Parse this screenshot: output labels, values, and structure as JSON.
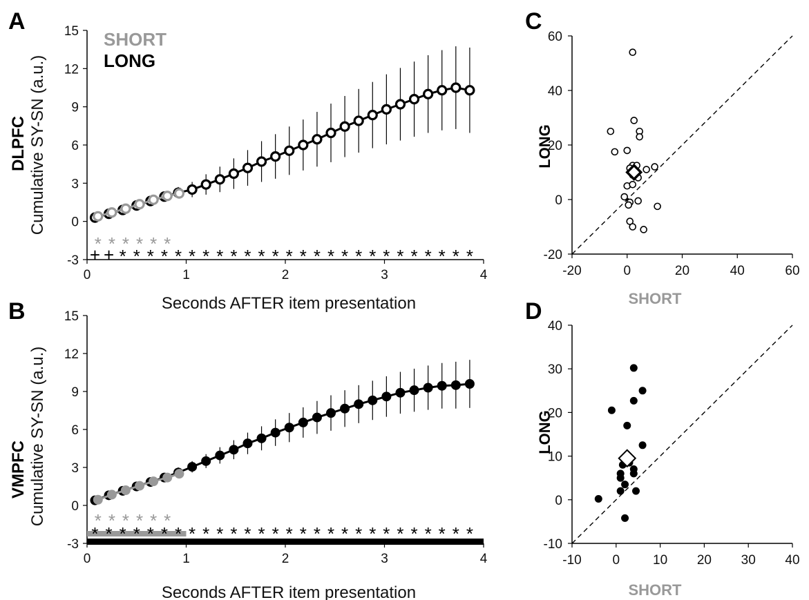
{
  "colors": {
    "short": "#999999",
    "long": "#000000"
  },
  "chart_data": [
    {
      "panel": "A",
      "type": "line",
      "region": "DLPFC",
      "marker": "open-circle",
      "xlabel": "Seconds AFTER item presentation",
      "ylabel": "Cumulative SY-SN (a.u.)",
      "xlim": [
        0,
        4
      ],
      "ylim": [
        -3,
        15
      ],
      "xticks": [
        "0",
        "1",
        "2",
        "3",
        "4"
      ],
      "yticks": [
        "-3",
        "0",
        "3",
        "6",
        "9",
        "12",
        "15"
      ],
      "legend": [
        "SHORT",
        "LONG"
      ],
      "series": [
        {
          "name": "LONG",
          "x": [
            0.08,
            0.22,
            0.36,
            0.5,
            0.64,
            0.78,
            0.92,
            1.06,
            1.2,
            1.34,
            1.48,
            1.62,
            1.76,
            1.9,
            2.04,
            2.18,
            2.32,
            2.46,
            2.6,
            2.74,
            2.88,
            3.02,
            3.16,
            3.3,
            3.44,
            3.58,
            3.72,
            3.86
          ],
          "y": [
            0.3,
            0.6,
            0.9,
            1.25,
            1.6,
            1.95,
            2.25,
            2.5,
            2.9,
            3.3,
            3.75,
            4.2,
            4.7,
            5.1,
            5.55,
            6.0,
            6.45,
            6.95,
            7.45,
            7.9,
            8.35,
            8.8,
            9.2,
            9.6,
            10.0,
            10.3,
            10.5,
            10.3
          ],
          "err": [
            0.15,
            0.2,
            0.25,
            0.3,
            0.35,
            0.4,
            0.45,
            0.6,
            0.8,
            1.0,
            1.2,
            1.4,
            1.6,
            1.75,
            1.9,
            2.0,
            2.15,
            2.3,
            2.4,
            2.5,
            2.6,
            2.75,
            2.85,
            2.95,
            3.05,
            3.15,
            3.25,
            3.35
          ]
        },
        {
          "name": "SHORT",
          "x": [
            0.11,
            0.25,
            0.39,
            0.53,
            0.67,
            0.81,
            0.93
          ],
          "y": [
            0.4,
            0.7,
            1.0,
            1.35,
            1.7,
            2.0,
            2.2
          ],
          "err": [
            0,
            0,
            0,
            0,
            0,
            0,
            0
          ]
        }
      ],
      "significance": [
        {
          "series": "SHORT",
          "marks": [
            "*",
            "*",
            "*",
            "*",
            "*",
            "*"
          ],
          "x": [
            0.11,
            0.25,
            0.39,
            0.53,
            0.67,
            0.81
          ]
        },
        {
          "series": "LONG",
          "marks": [
            "+",
            "+",
            "*",
            "*",
            "*",
            "*",
            "*",
            "*",
            "*",
            "*",
            "*",
            "*",
            "*",
            "*",
            "*",
            "*",
            "*",
            "*",
            "*",
            "*",
            "*",
            "*",
            "*",
            "*",
            "*",
            "*",
            "*",
            "*"
          ],
          "x": [
            0.08,
            0.22,
            0.36,
            0.5,
            0.64,
            0.78,
            0.92,
            1.06,
            1.2,
            1.34,
            1.48,
            1.62,
            1.76,
            1.9,
            2.04,
            2.18,
            2.32,
            2.46,
            2.6,
            2.74,
            2.88,
            3.02,
            3.16,
            3.3,
            3.44,
            3.58,
            3.72,
            3.86
          ]
        }
      ]
    },
    {
      "panel": "B",
      "type": "line",
      "region": "VMPFC",
      "marker": "filled-circle",
      "xlabel": "Seconds AFTER item presentation",
      "ylabel": "Cumulative SY-SN (a.u.)",
      "xlim": [
        0,
        4
      ],
      "ylim": [
        -3,
        15
      ],
      "xticks": [
        "0",
        "1",
        "2",
        "3",
        "4"
      ],
      "yticks": [
        "-3",
        "0",
        "3",
        "6",
        "9",
        "12",
        "15"
      ],
      "series": [
        {
          "name": "LONG",
          "x": [
            0.08,
            0.22,
            0.36,
            0.5,
            0.64,
            0.78,
            0.92,
            1.06,
            1.2,
            1.34,
            1.48,
            1.62,
            1.76,
            1.9,
            2.04,
            2.18,
            2.32,
            2.46,
            2.6,
            2.74,
            2.88,
            3.02,
            3.16,
            3.3,
            3.44,
            3.58,
            3.72,
            3.86
          ],
          "y": [
            0.4,
            0.8,
            1.15,
            1.5,
            1.85,
            2.2,
            2.6,
            3.05,
            3.5,
            3.95,
            4.4,
            4.9,
            5.3,
            5.75,
            6.15,
            6.55,
            6.95,
            7.3,
            7.65,
            8.0,
            8.3,
            8.6,
            8.9,
            9.1,
            9.3,
            9.45,
            9.5,
            9.6
          ],
          "err": [
            0.1,
            0.15,
            0.2,
            0.25,
            0.3,
            0.35,
            0.4,
            0.45,
            0.55,
            0.65,
            0.75,
            0.85,
            0.95,
            1.05,
            1.15,
            1.2,
            1.3,
            1.4,
            1.45,
            1.5,
            1.55,
            1.6,
            1.65,
            1.7,
            1.75,
            1.8,
            1.85,
            1.9
          ]
        },
        {
          "name": "SHORT",
          "x": [
            0.11,
            0.25,
            0.39,
            0.53,
            0.67,
            0.81,
            0.93
          ],
          "y": [
            0.45,
            0.85,
            1.2,
            1.55,
            1.9,
            2.2,
            2.5
          ],
          "err": [
            0,
            0,
            0,
            0,
            0,
            0,
            0
          ]
        }
      ],
      "significance": [
        {
          "series": "SHORT",
          "marks": [
            "*",
            "*",
            "*",
            "*",
            "*",
            "*"
          ],
          "x": [
            0.11,
            0.25,
            0.39,
            0.53,
            0.67,
            0.81
          ]
        },
        {
          "series": "LONG",
          "marks": [
            "*",
            "*",
            "*",
            "*",
            "*",
            "*",
            "*",
            "*",
            "*",
            "*",
            "*",
            "*",
            "*",
            "*",
            "*",
            "*",
            "*",
            "*",
            "*",
            "*",
            "*",
            "*",
            "*",
            "*",
            "*",
            "*",
            "*",
            "*"
          ],
          "x": [
            0.08,
            0.22,
            0.36,
            0.5,
            0.64,
            0.78,
            0.92,
            1.06,
            1.2,
            1.34,
            1.48,
            1.62,
            1.76,
            1.9,
            2.04,
            2.18,
            2.32,
            2.46,
            2.6,
            2.74,
            2.88,
            3.02,
            3.16,
            3.3,
            3.44,
            3.58,
            3.72,
            3.86
          ]
        }
      ],
      "duration_bars": [
        {
          "series": "SHORT",
          "x_range": [
            0,
            1
          ]
        },
        {
          "series": "LONG",
          "x_range": [
            0,
            4
          ]
        }
      ]
    },
    {
      "panel": "C",
      "type": "scatter",
      "marker": "open-circle",
      "xlabel": "SHORT",
      "ylabel": "LONG",
      "xlim": [
        -20,
        60
      ],
      "ylim": [
        -20,
        60
      ],
      "xticks": [
        "-20",
        "0",
        "20",
        "40",
        "60"
      ],
      "yticks": [
        "-20",
        "0",
        "20",
        "40",
        "60"
      ],
      "identity_line": true,
      "points": [
        [
          2,
          54
        ],
        [
          2.5,
          29
        ],
        [
          -6,
          25
        ],
        [
          4.5,
          25
        ],
        [
          4.5,
          23
        ],
        [
          -4.5,
          17.5
        ],
        [
          0,
          18
        ],
        [
          2,
          12.5
        ],
        [
          3.5,
          12.5
        ],
        [
          1,
          11.5
        ],
        [
          7,
          11
        ],
        [
          10,
          12
        ],
        [
          2,
          9
        ],
        [
          0,
          5
        ],
        [
          2,
          5.5
        ],
        [
          -1,
          1
        ],
        [
          1,
          -1
        ],
        [
          0.5,
          -2
        ],
        [
          4,
          -0.5
        ],
        [
          11,
          -2.5
        ],
        [
          1,
          -8
        ],
        [
          2,
          -10
        ],
        [
          6,
          -11
        ],
        [
          3,
          9
        ],
        [
          4,
          8
        ]
      ],
      "mean": {
        "x": 2.5,
        "y": 10,
        "marker": "diamond"
      }
    },
    {
      "panel": "D",
      "type": "scatter",
      "marker": "filled-circle",
      "xlabel": "SHORT",
      "ylabel": "LONG",
      "xlim": [
        -10,
        40
      ],
      "ylim": [
        -10,
        40
      ],
      "xticks": [
        "-10",
        "0",
        "10",
        "20",
        "30",
        "40"
      ],
      "yticks": [
        "-10",
        "0",
        "10",
        "20",
        "30",
        "40"
      ],
      "identity_line": true,
      "points": [
        [
          4,
          30.2
        ],
        [
          6,
          25
        ],
        [
          -1,
          20.5
        ],
        [
          4,
          22.7
        ],
        [
          2.5,
          17
        ],
        [
          6,
          12.5
        ],
        [
          2,
          9
        ],
        [
          1.5,
          8
        ],
        [
          4,
          7
        ],
        [
          4,
          6
        ],
        [
          1,
          6
        ],
        [
          2,
          3.5
        ],
        [
          1,
          2
        ],
        [
          4.5,
          2
        ],
        [
          -4,
          0.2
        ],
        [
          2,
          -4.2
        ],
        [
          1,
          5
        ],
        [
          3,
          8.5
        ]
      ],
      "mean": {
        "x": 2.5,
        "y": 9.5,
        "marker": "diamond"
      }
    }
  ],
  "labels": {
    "A": "A",
    "B": "B",
    "C": "C",
    "D": "D"
  }
}
